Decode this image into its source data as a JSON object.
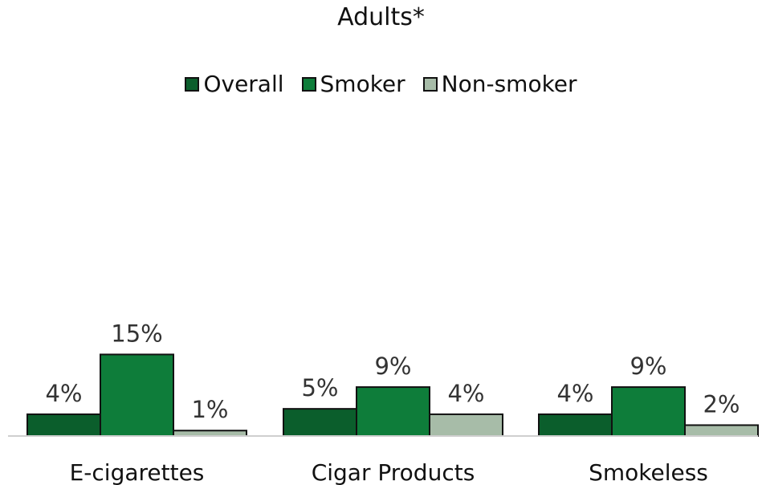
{
  "chart_data": {
    "type": "bar",
    "title": "Adults*",
    "categories": [
      "E-cigarettes",
      "Cigar Products",
      "Smokeless"
    ],
    "series": [
      {
        "name": "Overall",
        "values": [
          4,
          5,
          4
        ],
        "labels": [
          "4%",
          "5%",
          "4%"
        ],
        "color": "#0b5e2c"
      },
      {
        "name": "Smoker",
        "values": [
          15,
          9,
          9
        ],
        "labels": [
          "15%",
          "9%",
          "9%"
        ],
        "color": "#0e7d3a"
      },
      {
        "name": "Non-smoker",
        "values": [
          1,
          4,
          2
        ],
        "labels": [
          "1%",
          "4%",
          "2%"
        ],
        "color": "#a7bca8"
      }
    ],
    "ylim": [
      0,
      61
    ],
    "legend_position": "top",
    "grid": false,
    "xlabel": "",
    "ylabel": ""
  }
}
